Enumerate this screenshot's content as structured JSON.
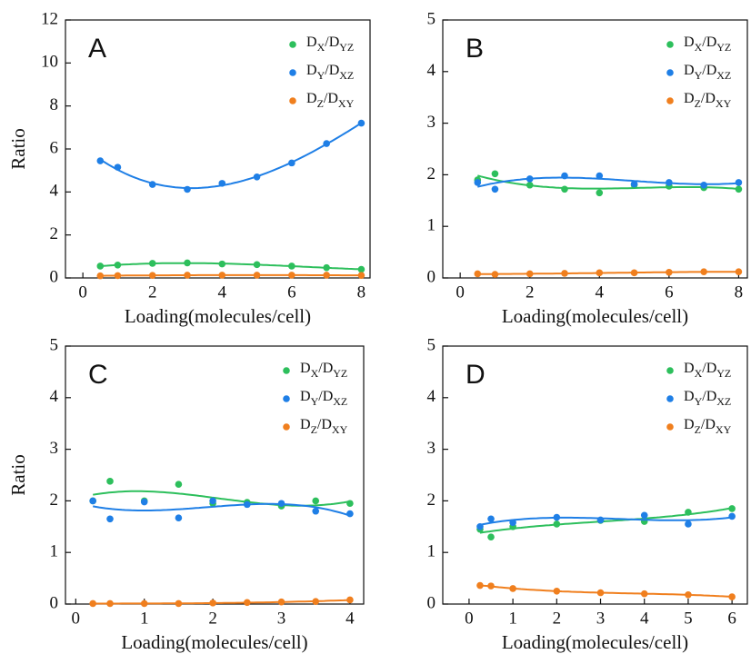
{
  "chart_data": [
    {
      "type": "scatter",
      "panel": "A",
      "x_label": "Loading(molecules/cell)",
      "y_label": "Ratio",
      "x": [
        0.5,
        1,
        2,
        3,
        4,
        5,
        6,
        7,
        8
      ],
      "xlim": [
        -0.5,
        8.25
      ],
      "ylim": [
        0,
        12
      ],
      "xticks": [
        0,
        2,
        4,
        6,
        8
      ],
      "yticks": [
        0,
        2,
        4,
        6,
        8,
        10,
        12
      ],
      "series": [
        {
          "name": "DX/DYZ",
          "color": "#2dbf5c",
          "values": [
            0.55,
            0.6,
            0.68,
            0.7,
            0.65,
            0.62,
            0.55,
            0.48,
            0.4
          ]
        },
        {
          "name": "DY/DXZ",
          "color": "#1f7fe6",
          "values": [
            5.45,
            5.15,
            4.35,
            4.12,
            4.4,
            4.7,
            5.35,
            6.25,
            7.2
          ]
        },
        {
          "name": "DZ/DXY",
          "color": "#f07f1e",
          "values": [
            0.1,
            0.11,
            0.12,
            0.13,
            0.13,
            0.13,
            0.13,
            0.13,
            0.12
          ]
        }
      ]
    },
    {
      "type": "scatter",
      "panel": "B",
      "x_label": "Loading(molecules/cell)",
      "x": [
        0.5,
        1,
        2,
        3,
        4,
        5,
        6,
        7,
        8
      ],
      "xlim": [
        -0.5,
        8.25
      ],
      "ylim": [
        0,
        5
      ],
      "xticks": [
        0,
        2,
        4,
        6,
        8
      ],
      "yticks": [
        0,
        1,
        2,
        3,
        4,
        5
      ],
      "series": [
        {
          "name": "DX/DYZ",
          "color": "#2dbf5c",
          "values": [
            1.9,
            2.02,
            1.8,
            1.72,
            1.65,
            1.8,
            1.78,
            1.75,
            1.72
          ]
        },
        {
          "name": "DY/DXZ",
          "color": "#1f7fe6",
          "values": [
            1.85,
            1.72,
            1.92,
            1.98,
            1.98,
            1.82,
            1.85,
            1.8,
            1.85
          ]
        },
        {
          "name": "DZ/DXY",
          "color": "#f07f1e",
          "values": [
            0.08,
            0.07,
            0.08,
            0.09,
            0.1,
            0.1,
            0.11,
            0.12,
            0.12
          ]
        }
      ]
    },
    {
      "type": "scatter",
      "panel": "C",
      "x_label": "Loading(molecules/cell)",
      "y_label": "Ratio",
      "x": [
        0.25,
        0.5,
        1,
        1.5,
        2,
        2.5,
        3,
        3.5,
        4
      ],
      "xlim": [
        -0.15,
        4.2
      ],
      "ylim": [
        0,
        5
      ],
      "xticks": [
        0,
        1,
        2,
        3,
        4
      ],
      "yticks": [
        0,
        1,
        2,
        3,
        4,
        5
      ],
      "series": [
        {
          "name": "DX/DYZ",
          "color": "#2dbf5c",
          "values": [
            2.0,
            2.38,
            2.0,
            2.32,
            1.95,
            1.97,
            1.9,
            2.0,
            1.95
          ]
        },
        {
          "name": "DY/DXZ",
          "color": "#1f7fe6",
          "values": [
            2.0,
            1.65,
            1.98,
            1.67,
            2.0,
            1.93,
            1.95,
            1.8,
            1.75
          ]
        },
        {
          "name": "DZ/DXY",
          "color": "#f07f1e",
          "values": [
            0.01,
            0.01,
            0.01,
            0.01,
            0.02,
            0.03,
            0.04,
            0.05,
            0.08
          ]
        }
      ]
    },
    {
      "type": "scatter",
      "panel": "D",
      "x_label": "Loading(molecules/cell)",
      "x": [
        0.25,
        0.5,
        1,
        2,
        3,
        4,
        5,
        6
      ],
      "xlim": [
        -0.6,
        6.35
      ],
      "ylim": [
        0,
        5
      ],
      "xticks": [
        0,
        1,
        2,
        3,
        4,
        5,
        6
      ],
      "yticks": [
        0,
        1,
        2,
        3,
        4,
        5
      ],
      "series": [
        {
          "name": "DX/DYZ",
          "color": "#2dbf5c",
          "values": [
            1.45,
            1.3,
            1.5,
            1.55,
            1.62,
            1.6,
            1.78,
            1.85
          ]
        },
        {
          "name": "DY/DXZ",
          "color": "#1f7fe6",
          "values": [
            1.5,
            1.65,
            1.58,
            1.68,
            1.63,
            1.72,
            1.55,
            1.7
          ]
        },
        {
          "name": "DZ/DXY",
          "color": "#f07f1e",
          "values": [
            0.36,
            0.35,
            0.3,
            0.25,
            0.22,
            0.2,
            0.18,
            0.14
          ]
        }
      ]
    }
  ]
}
